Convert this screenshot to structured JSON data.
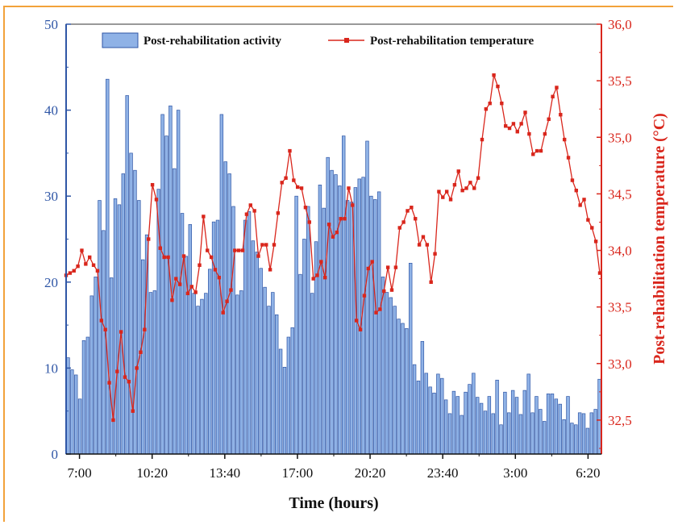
{
  "chart_data": {
    "type": "bar+line",
    "xlabel": "Time (hours)",
    "x_tick_labels": [
      "7:00",
      "10:20",
      "13:40",
      "17:00",
      "20:20",
      "23:40",
      "3:00",
      "6:20"
    ],
    "legend": {
      "placement": "top-center",
      "items": [
        "Post-rehabilitation activity",
        "Post-rehabilitation temperature"
      ]
    },
    "left_axis": {
      "ylim": [
        0,
        50
      ],
      "ticks": [
        "0",
        "10",
        "20",
        "30",
        "40",
        "50"
      ],
      "color": "#2f56a6"
    },
    "right_axis": {
      "label": "Post-rehabilitation temperature (°C)",
      "ylim": [
        32.2,
        36.0
      ],
      "ticks": [
        "32,5",
        "33,0",
        "33,5",
        "34,0",
        "34,5",
        "35,0",
        "35,5",
        "36,0"
      ],
      "color": "#d9261c"
    },
    "series": [
      {
        "name": "Post-rehabilitation activity",
        "kind": "bar",
        "axis": "left",
        "color": "#8fb2e6",
        "values": [
          11.2,
          9.8,
          9.2,
          6.4,
          13.2,
          13.6,
          18.4,
          20.6,
          29.5,
          26,
          43.6,
          20.5,
          29.7,
          29,
          32.6,
          41.7,
          35,
          33,
          29.5,
          22.6,
          25.5,
          18.8,
          19,
          30.8,
          39.5,
          37,
          40.5,
          33.2,
          40,
          28,
          23,
          26.7,
          18.7,
          17.2,
          18,
          18.7,
          21.5,
          27,
          27.2,
          39.5,
          34,
          32.6,
          28.8,
          18.5,
          19,
          27.2,
          28.2,
          24.8,
          23.5,
          21.6,
          19.4,
          17.2,
          18.8,
          16.2,
          12.2,
          10.1,
          13.6,
          14.7,
          30,
          20.9,
          25,
          28.8,
          18.7,
          24.7,
          31.3,
          28.6,
          34.5,
          33,
          32.5,
          31.2,
          37,
          29.5,
          29.3,
          31,
          32,
          32.2,
          36.4,
          30,
          29.6,
          30.5,
          20.6,
          18.8,
          18.2,
          17.2,
          15.7,
          15.2,
          14.6,
          22.2,
          10.4,
          8.5,
          13.1,
          9.4,
          7.8,
          7.1,
          9.3,
          8.8,
          6.3,
          4.7,
          7.3,
          6.7,
          4.5,
          7.2,
          8.1,
          9.4,
          6.6,
          5.9,
          5,
          6.7,
          4.7,
          8.6,
          3.4,
          7.2,
          4.8,
          7.4,
          6.6,
          4.6,
          7.4,
          9.3,
          4.8,
          6.7,
          5.2,
          3.8,
          7,
          7,
          6.4,
          5.8,
          4,
          6.7,
          3.6,
          3.4,
          4.8,
          4.7,
          3,
          4.8,
          5.2,
          8.7
        ]
      },
      {
        "name": "Post-rehabilitation temperature",
        "kind": "line",
        "axis": "right",
        "color": "#d9261c",
        "values": [
          33.78,
          33.8,
          33.82,
          33.86,
          34.0,
          33.88,
          33.94,
          33.87,
          33.82,
          33.38,
          33.3,
          32.83,
          32.5,
          32.93,
          33.28,
          32.88,
          32.84,
          32.58,
          32.96,
          33.1,
          33.3,
          34.1,
          34.58,
          34.45,
          34.02,
          33.94,
          33.94,
          33.56,
          33.75,
          33.7,
          33.95,
          33.62,
          33.68,
          33.63,
          33.87,
          34.3,
          34.0,
          33.94,
          33.83,
          33.76,
          33.45,
          33.55,
          33.65,
          34.0,
          34.0,
          34.0,
          34.32,
          34.4,
          34.35,
          33.95,
          34.05,
          34.05,
          33.83,
          34.05,
          34.33,
          34.6,
          34.64,
          34.88,
          34.62,
          34.56,
          34.55,
          34.38,
          34.25,
          33.75,
          33.78,
          33.9,
          33.76,
          34.23,
          34.12,
          34.16,
          34.28,
          34.28,
          34.55,
          34.4,
          33.38,
          33.3,
          33.6,
          33.84,
          33.9,
          33.45,
          33.48,
          33.64,
          33.85,
          33.65,
          33.85,
          34.2,
          34.25,
          34.35,
          34.38,
          34.28,
          34.05,
          34.12,
          34.05,
          33.72,
          33.97,
          34.52,
          34.47,
          34.52,
          34.45,
          34.58,
          34.7,
          34.53,
          34.55,
          34.6,
          34.55,
          34.64,
          34.98,
          35.25,
          35.3,
          35.55,
          35.45,
          35.3,
          35.1,
          35.08,
          35.12,
          35.05,
          35.12,
          35.22,
          35.03,
          34.85,
          34.88,
          34.88,
          35.03,
          35.16,
          35.36,
          35.44,
          35.2,
          34.98,
          34.82,
          34.62,
          34.53,
          34.4,
          34.45,
          34.27,
          34.2,
          34.08,
          33.8
        ]
      }
    ]
  }
}
